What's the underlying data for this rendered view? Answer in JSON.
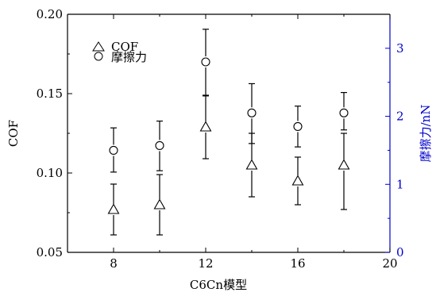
{
  "chart_data": {
    "type": "scatter",
    "xlabel": "C6Cn模型",
    "ylabel_left": "COF",
    "ylabel_right": "摩擦力/nN",
    "xlim": [
      6,
      20
    ],
    "x_ticks": [
      "8",
      "12",
      "16",
      "20"
    ],
    "ylim_left": [
      0.05,
      0.2
    ],
    "y_left_ticks": [
      "0.05",
      "0.10",
      "0.15",
      "0.20"
    ],
    "ylim_right": [
      0,
      3.5
    ],
    "y_right_ticks": [
      "0",
      "1",
      "2",
      "3"
    ],
    "right_axis_color": "#0000cc",
    "legend": {
      "position": "top-left",
      "entries": [
        "COF",
        "摩擦力"
      ]
    },
    "series": [
      {
        "name": "COF",
        "axis": "left",
        "marker": "triangle",
        "x": [
          8,
          10,
          12,
          14,
          16,
          18
        ],
        "y": [
          0.077,
          0.08,
          0.129,
          0.105,
          0.095,
          0.105
        ],
        "err_low": [
          0.061,
          0.061,
          0.109,
          0.085,
          0.08,
          0.077
        ],
        "err_high": [
          0.093,
          0.099,
          0.149,
          0.125,
          0.11,
          0.125
        ]
      },
      {
        "name": "摩擦力",
        "axis": "right",
        "marker": "circle",
        "x": [
          8,
          10,
          12,
          14,
          16,
          18
        ],
        "y": [
          1.5,
          1.57,
          2.8,
          2.05,
          1.85,
          2.05
        ],
        "err_low": [
          1.18,
          1.2,
          2.3,
          1.6,
          1.55,
          1.8
        ],
        "err_high": [
          1.83,
          1.93,
          3.28,
          2.48,
          2.15,
          2.35
        ]
      }
    ]
  }
}
